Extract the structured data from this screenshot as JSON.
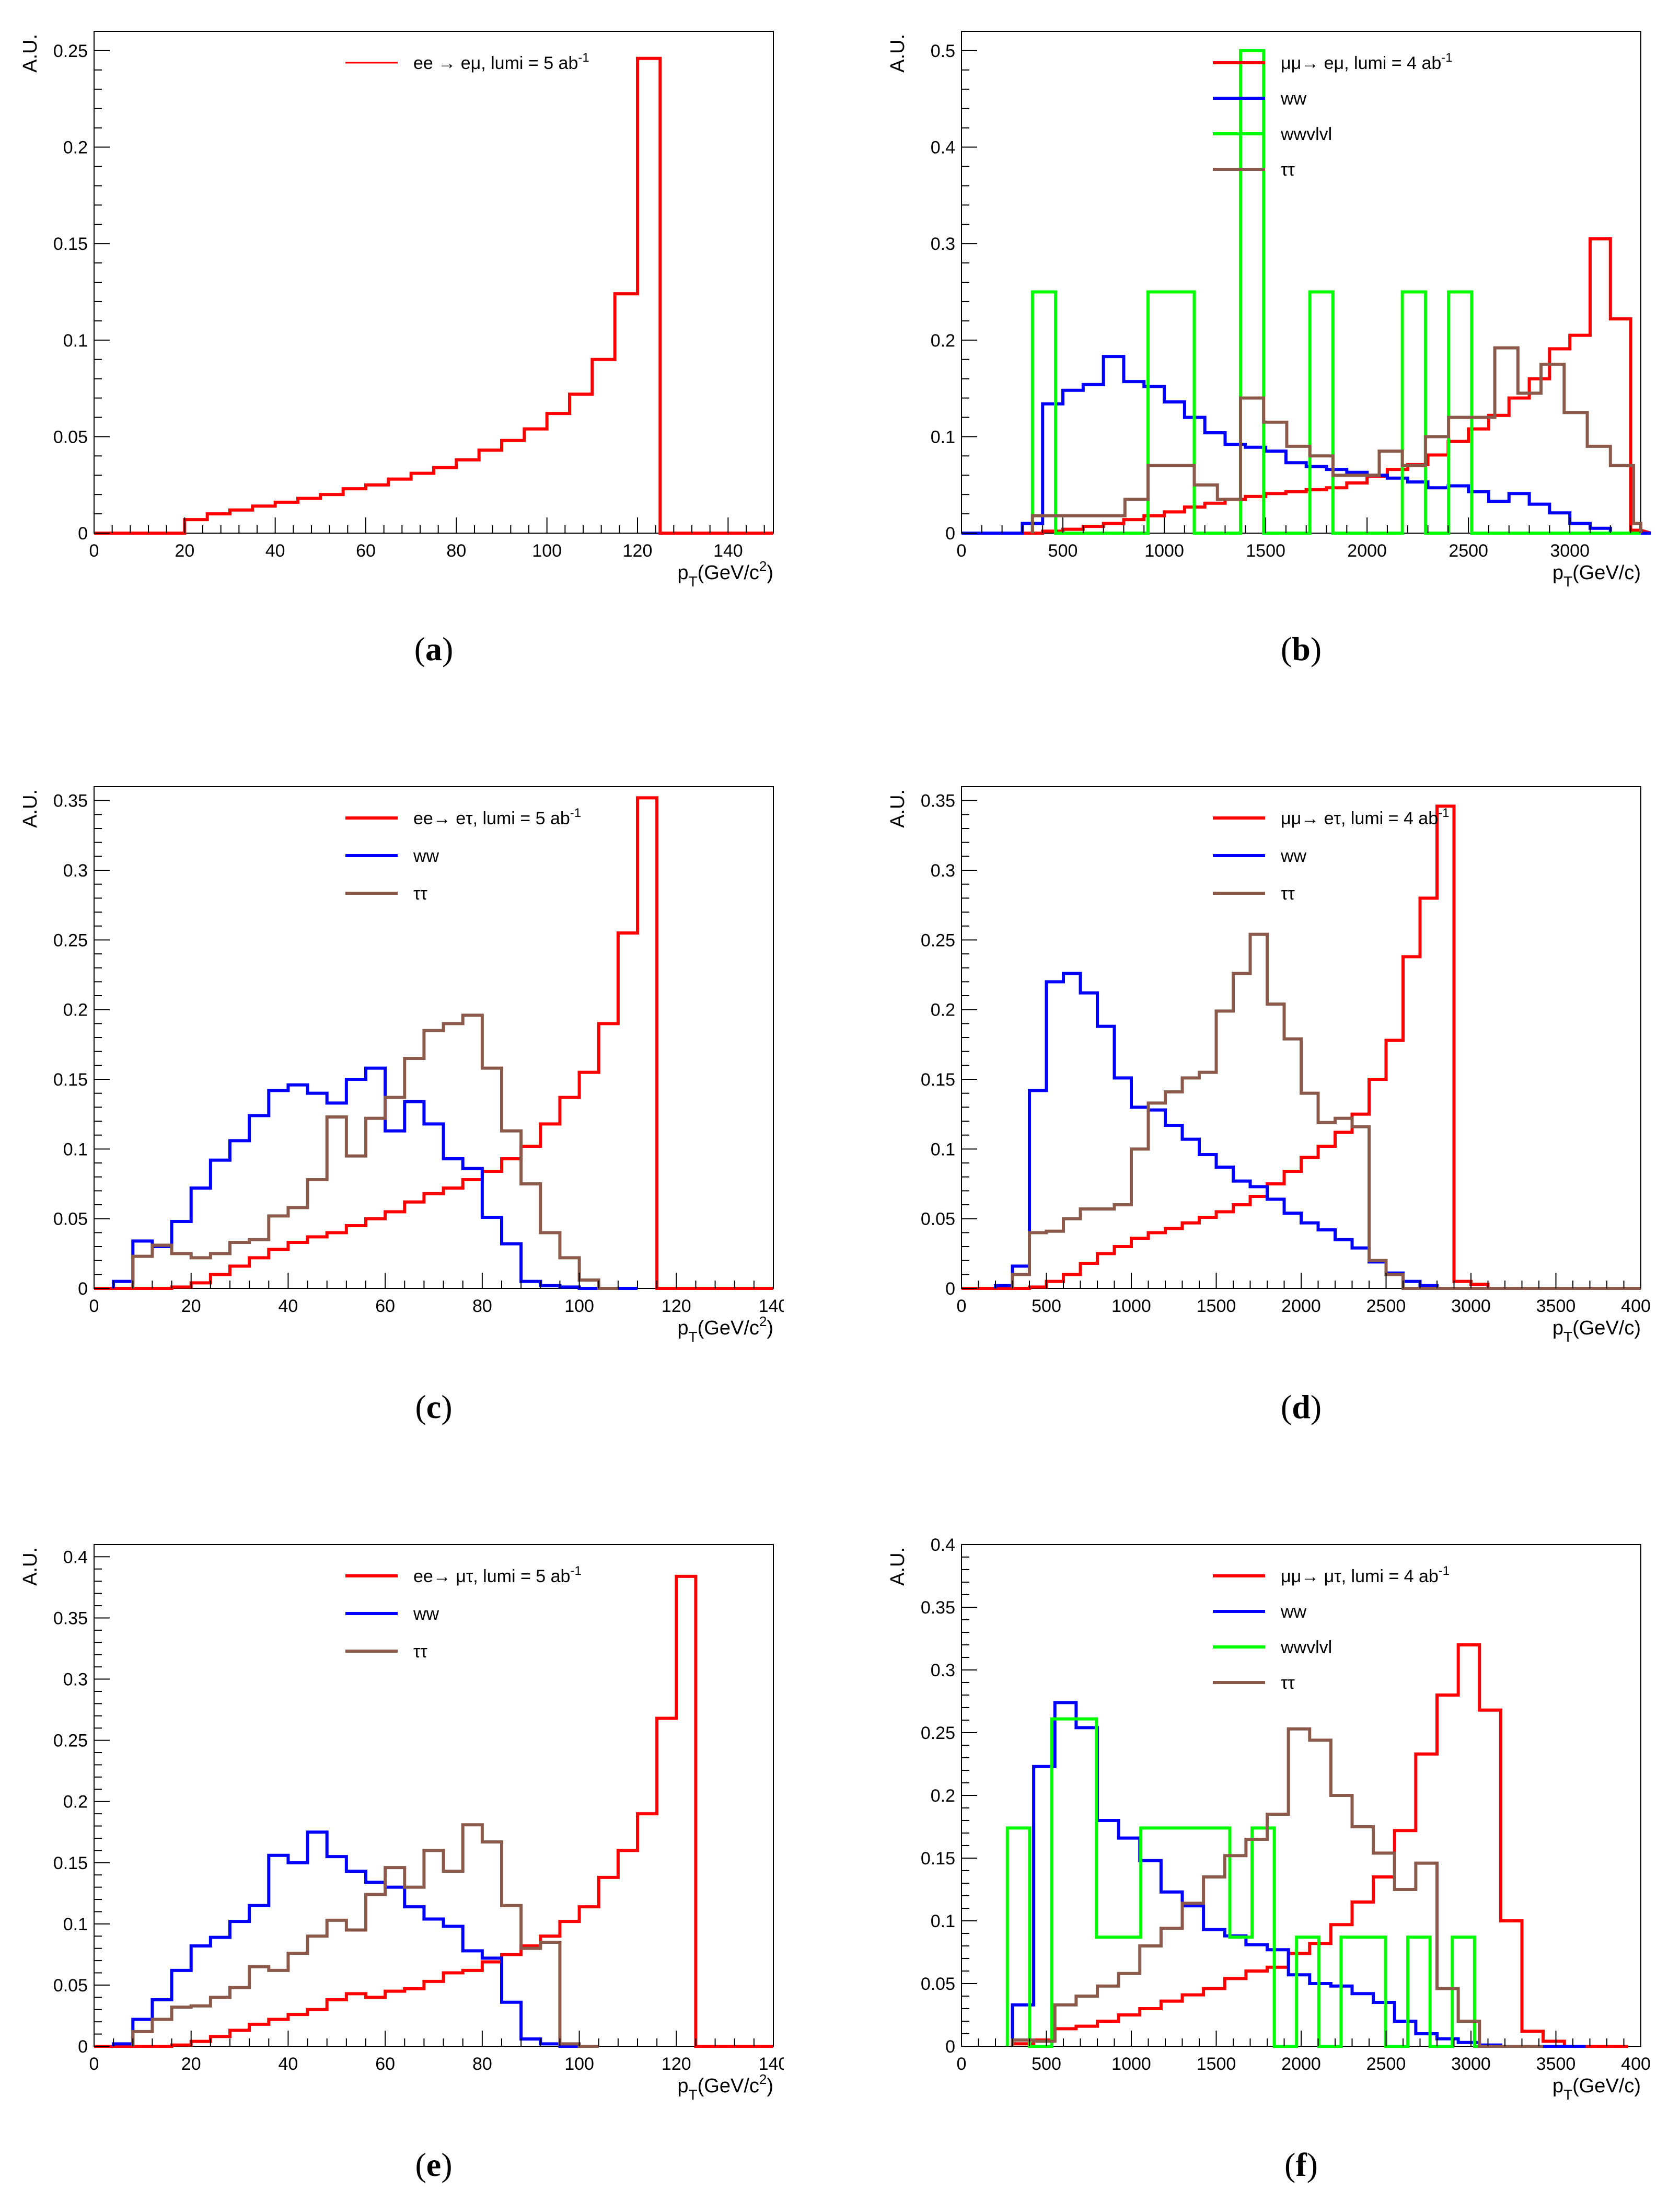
{
  "figure": {
    "panels": [
      {
        "id": "a",
        "caption": "a"
      },
      {
        "id": "b",
        "caption": "b"
      },
      {
        "id": "c",
        "caption": "c"
      },
      {
        "id": "d",
        "caption": "d"
      },
      {
        "id": "e",
        "caption": "e"
      },
      {
        "id": "f",
        "caption": "f"
      }
    ]
  },
  "colors": {
    "red": "#ff0000",
    "blue": "#0000ff",
    "green": "#00ff00",
    "brown": "#8b5a4a",
    "axis": "#000000"
  },
  "chart_data": [
    {
      "panel": "a",
      "type": "histogram",
      "ylabel": "A.U.",
      "xlabel_main": "p",
      "xlabel_sub": "T",
      "xlabel_unit": "(GeV/c",
      "xlabel_sup": "2",
      "xlabel_close": ")",
      "xlim": [
        0,
        150
      ],
      "ylim": [
        0,
        0.26
      ],
      "xticks": [
        0,
        20,
        40,
        60,
        80,
        100,
        120,
        140
      ],
      "yticks": [
        0,
        0.05,
        0.1,
        0.15,
        0.2,
        0.25
      ],
      "xtick_labels": [
        "0",
        "20",
        "40",
        "60",
        "80",
        "100",
        "120",
        "140"
      ],
      "ytick_labels": [
        "0",
        "0.05",
        "0.1",
        "0.15",
        "0.2",
        "0.25"
      ],
      "legend_position": "top-center",
      "series": [
        {
          "name": "ee → eμ, lumi = 5 ab",
          "sup": "-1",
          "color": "red",
          "start": 0,
          "width": 5,
          "values": [
            0,
            0,
            0,
            0,
            0.007,
            0.01,
            0.012,
            0.014,
            0.016,
            0.018,
            0.02,
            0.023,
            0.025,
            0.028,
            0.031,
            0.034,
            0.038,
            0.043,
            0.048,
            0.054,
            0.062,
            0.072,
            0.09,
            0.124,
            0.246,
            0,
            0,
            0,
            0,
            0
          ]
        }
      ]
    },
    {
      "panel": "b",
      "type": "histogram",
      "ylabel": "A.U.",
      "xlabel_main": "p",
      "xlabel_sub": "T",
      "xlabel_unit": "(GeV/c)",
      "xlabel_sup": "",
      "xlabel_close": "",
      "xlim": [
        0,
        3350
      ],
      "ylim": [
        0,
        0.52
      ],
      "xticks": [
        0,
        500,
        1000,
        1500,
        2000,
        2500,
        3000
      ],
      "yticks": [
        0,
        0.1,
        0.2,
        0.3,
        0.4,
        0.5
      ],
      "xtick_labels": [
        "0",
        "500",
        "1000",
        "1500",
        "2000",
        "2500",
        "3000"
      ],
      "ytick_labels": [
        "0",
        "0.1",
        "0.2",
        "0.3",
        "0.4",
        "0.5"
      ],
      "legend_position": "top-center",
      "series": [
        {
          "name": "μμ→ eμ, lumi = 4 ab",
          "sup": "-1",
          "color": "red",
          "start": 0,
          "width": 100,
          "values": [
            0,
            0,
            0,
            0,
            0.002,
            0.004,
            0.007,
            0.01,
            0.014,
            0.018,
            0.022,
            0.027,
            0.031,
            0.035,
            0.038,
            0.041,
            0.043,
            0.045,
            0.047,
            0.052,
            0.059,
            0.066,
            0.071,
            0.081,
            0.095,
            0.108,
            0.122,
            0.14,
            0.16,
            0.191,
            0.205,
            0.305,
            0.222,
            0.003,
            0
          ]
        },
        {
          "name": "ww",
          "sup": "",
          "color": "blue",
          "start": 0,
          "width": 100,
          "values": [
            0,
            0,
            0,
            0.01,
            0.134,
            0.148,
            0.154,
            0.183,
            0.157,
            0.152,
            0.136,
            0.12,
            0.104,
            0.092,
            0.089,
            0.085,
            0.073,
            0.069,
            0.066,
            0.063,
            0.06,
            0.057,
            0.053,
            0.047,
            0.049,
            0.043,
            0.033,
            0.041,
            0.03,
            0.021,
            0.01,
            0.005,
            0,
            0,
            0
          ]
        },
        {
          "name": "wwvlvl",
          "sup": "",
          "color": "green",
          "start": 350,
          "width": 114,
          "values": [
            0.25,
            0,
            0,
            0,
            0,
            0.25,
            0.25,
            0,
            0,
            0.5,
            0,
            0,
            0.25,
            0,
            0,
            0,
            0.25,
            0,
            0.25,
            0,
            0,
            0,
            0,
            0,
            0,
            0,
            0
          ]
        },
        {
          "name": "ττ",
          "sup": "",
          "color": "brown",
          "start": 350,
          "width": 114,
          "values": [
            0.018,
            0.018,
            0.018,
            0.018,
            0.035,
            0.07,
            0.07,
            0.05,
            0.035,
            0.14,
            0.115,
            0.09,
            0.08,
            0.06,
            0.06,
            0.085,
            0.07,
            0.1,
            0.12,
            0.12,
            0.192,
            0.145,
            0.175,
            0.125,
            0.09,
            0.07,
            0.01
          ]
        }
      ]
    },
    {
      "panel": "c",
      "type": "histogram",
      "ylabel": "A.U.",
      "xlabel_main": "p",
      "xlabel_sub": "T",
      "xlabel_unit": "(GeV/c",
      "xlabel_sup": "2",
      "xlabel_close": ")",
      "xlim": [
        0,
        140
      ],
      "ylim": [
        0,
        0.36
      ],
      "xticks": [
        0,
        20,
        40,
        60,
        80,
        100,
        120,
        140
      ],
      "yticks": [
        0,
        0.05,
        0.1,
        0.15,
        0.2,
        0.25,
        0.3,
        0.35
      ],
      "xtick_labels": [
        "0",
        "20",
        "40",
        "60",
        "80",
        "100",
        "120",
        "140"
      ],
      "ytick_labels": [
        "0",
        "0.05",
        "0.1",
        "0.15",
        "0.2",
        "0.25",
        "0.3",
        "0.35"
      ],
      "legend_position": "top-center",
      "series": [
        {
          "name": "ee→ eτ, lumi = 5 ab",
          "sup": "-1",
          "color": "red",
          "start": 0,
          "width": 4,
          "values": [
            0,
            0,
            0,
            0,
            0.001,
            0.004,
            0.01,
            0.016,
            0.022,
            0.028,
            0.033,
            0.037,
            0.04,
            0.045,
            0.05,
            0.055,
            0.062,
            0.068,
            0.072,
            0.078,
            0.084,
            0.093,
            0.102,
            0.118,
            0.137,
            0.155,
            0.19,
            0.255,
            0.352,
            0,
            0,
            0,
            0,
            0,
            0
          ]
        },
        {
          "name": "ww",
          "sup": "",
          "color": "blue",
          "start": 4,
          "width": 4,
          "values": [
            0.005,
            0.034,
            0.03,
            0.048,
            0.072,
            0.092,
            0.106,
            0.124,
            0.142,
            0.146,
            0.14,
            0.133,
            0.15,
            0.158,
            0.113,
            0.134,
            0.118,
            0.093,
            0.086,
            0.051,
            0.032,
            0.005,
            0.002,
            0.001,
            0,
            0,
            0
          ]
        },
        {
          "name": "ττ",
          "sup": "",
          "color": "brown",
          "start": 8,
          "width": 4,
          "values": [
            0.023,
            0.031,
            0.025,
            0.022,
            0.025,
            0.033,
            0.035,
            0.052,
            0.058,
            0.078,
            0.123,
            0.095,
            0.122,
            0.137,
            0.165,
            0.185,
            0.19,
            0.196,
            0.158,
            0.113,
            0.075,
            0.04,
            0.022,
            0.006,
            0
          ]
        }
      ]
    },
    {
      "panel": "d",
      "type": "histogram",
      "ylabel": "A.U.",
      "xlabel_main": "p",
      "xlabel_sub": "T",
      "xlabel_unit": "(GeV/c)",
      "xlabel_sup": "",
      "xlabel_close": "",
      "xlim": [
        0,
        4000
      ],
      "ylim": [
        0,
        0.36
      ],
      "xticks": [
        0,
        500,
        1000,
        1500,
        2000,
        2500,
        3000,
        3500,
        4000
      ],
      "yticks": [
        0,
        0.05,
        0.1,
        0.15,
        0.2,
        0.25,
        0.3,
        0.35
      ],
      "xtick_labels": [
        "0",
        "500",
        "1000",
        "1500",
        "2000",
        "2500",
        "3000",
        "3500",
        "4000"
      ],
      "ytick_labels": [
        "0",
        "0.05",
        "0.1",
        "0.15",
        "0.2",
        "0.25",
        "0.3",
        "0.35"
      ],
      "legend_position": "top-center",
      "series": [
        {
          "name": "μμ→ eτ, lumi = 4 ab",
          "sup": "-1",
          "color": "red",
          "start": 0,
          "width": 100,
          "values": [
            0,
            0,
            0,
            0,
            0.001,
            0.005,
            0.01,
            0.018,
            0.025,
            0.03,
            0.036,
            0.04,
            0.043,
            0.047,
            0.051,
            0.055,
            0.06,
            0.066,
            0.075,
            0.084,
            0.094,
            0.102,
            0.112,
            0.125,
            0.15,
            0.178,
            0.238,
            0.28,
            0.346,
            0.005,
            0.003,
            0,
            0,
            0,
            0,
            0,
            0,
            0,
            0,
            0
          ]
        },
        {
          "name": "ww",
          "sup": "",
          "color": "blue",
          "start": 200,
          "width": 100,
          "values": [
            0.002,
            0.016,
            0.142,
            0.22,
            0.226,
            0.212,
            0.188,
            0.151,
            0.13,
            0.128,
            0.117,
            0.107,
            0.096,
            0.087,
            0.077,
            0.073,
            0.064,
            0.054,
            0.047,
            0.042,
            0.035,
            0.029,
            0.019,
            0.011,
            0.005,
            0.002,
            0,
            0,
            0,
            0,
            0,
            0,
            0,
            0,
            0,
            0,
            0,
            0
          ]
        },
        {
          "name": "ττ",
          "sup": "",
          "color": "brown",
          "start": 300,
          "width": 100,
          "values": [
            0.01,
            0.04,
            0.041,
            0.05,
            0.057,
            0.057,
            0.06,
            0.1,
            0.133,
            0.141,
            0.151,
            0.155,
            0.199,
            0.226,
            0.254,
            0.204,
            0.179,
            0.14,
            0.119,
            0.122,
            0.116,
            0.02,
            0.01,
            0.0,
            0,
            0,
            0,
            0,
            0,
            0,
            0,
            0,
            0,
            0,
            0,
            0,
            0
          ]
        }
      ]
    },
    {
      "panel": "e",
      "type": "histogram",
      "ylabel": "A.U.",
      "xlabel_main": "p",
      "xlabel_sub": "T",
      "xlabel_unit": "(GeV/c",
      "xlabel_sup": "2",
      "xlabel_close": ")",
      "xlim": [
        0,
        140
      ],
      "ylim": [
        0,
        0.41
      ],
      "xticks": [
        0,
        20,
        40,
        60,
        80,
        100,
        120,
        140
      ],
      "yticks": [
        0,
        0.05,
        0.1,
        0.15,
        0.2,
        0.25,
        0.3,
        0.35,
        0.4
      ],
      "xtick_labels": [
        "0",
        "20",
        "40",
        "60",
        "80",
        "100",
        "120",
        "140"
      ],
      "ytick_labels": [
        "0",
        "0.05",
        "0.1",
        "0.15",
        "0.2",
        "0.25",
        "0.3",
        "0.35",
        "0.4"
      ],
      "legend_position": "top-center",
      "series": [
        {
          "name": "ee→ μτ, lumi = 5 ab",
          "sup": "-1",
          "color": "red",
          "start": 0,
          "width": 4,
          "values": [
            0,
            0,
            0,
            0,
            0.001,
            0.004,
            0.008,
            0.013,
            0.018,
            0.022,
            0.026,
            0.03,
            0.038,
            0.043,
            0.04,
            0.045,
            0.047,
            0.053,
            0.06,
            0.062,
            0.069,
            0.075,
            0.082,
            0.09,
            0.102,
            0.114,
            0.138,
            0.16,
            0.19,
            0.268,
            0.384,
            0,
            0,
            0,
            0
          ]
        },
        {
          "name": "ww",
          "sup": "",
          "color": "blue",
          "start": 4,
          "width": 4,
          "values": [
            0.002,
            0.022,
            0.038,
            0.062,
            0.082,
            0.089,
            0.102,
            0.115,
            0.156,
            0.15,
            0.175,
            0.155,
            0.143,
            0.134,
            0.13,
            0.114,
            0.104,
            0.098,
            0.078,
            0.072,
            0.036,
            0.006,
            0.002,
            0,
            0
          ]
        },
        {
          "name": "ττ",
          "sup": "",
          "color": "brown",
          "start": 8,
          "width": 4,
          "values": [
            0.012,
            0.022,
            0.032,
            0.033,
            0.04,
            0.048,
            0.065,
            0.062,
            0.076,
            0.09,
            0.103,
            0.095,
            0.124,
            0.146,
            0.13,
            0.16,
            0.143,
            0.181,
            0.167,
            0.115,
            0.08,
            0.085,
            0.002,
            0
          ]
        }
      ]
    },
    {
      "panel": "f",
      "type": "histogram",
      "ylabel": "A.U.",
      "xlabel_main": "p",
      "xlabel_sub": "T",
      "xlabel_unit": "(GeV/c)",
      "xlabel_sup": "",
      "xlabel_close": "",
      "xlim": [
        0,
        4000
      ],
      "ylim": [
        0,
        0.4
      ],
      "xticks": [
        0,
        500,
        1000,
        1500,
        2000,
        2500,
        3000,
        3500,
        4000
      ],
      "yticks": [
        0,
        0.05,
        0.1,
        0.15,
        0.2,
        0.25,
        0.3,
        0.35,
        0.4
      ],
      "xtick_labels": [
        "0",
        "500",
        "1000",
        "1500",
        "2000",
        "2500",
        "3000",
        "3500",
        "4000"
      ],
      "ytick_labels": [
        "0",
        "0.05",
        "0.1",
        "0.15",
        "0.2",
        "0.25",
        "0.3",
        "0.35",
        "0.4"
      ],
      "legend_position": "top-center",
      "series": [
        {
          "name": "μμ→ μτ, lumi = 4 ab",
          "sup": "-1",
          "color": "red",
          "start": 300,
          "width": 125,
          "values": [
            0.002,
            0.005,
            0.014,
            0.016,
            0.02,
            0.025,
            0.03,
            0.036,
            0.041,
            0.046,
            0.054,
            0.06,
            0.063,
            0.074,
            0.082,
            0.097,
            0.115,
            0.135,
            0.172,
            0.233,
            0.28,
            0.32,
            0.268,
            0.1,
            0.012,
            0.004,
            0,
            0,
            0
          ]
        },
        {
          "name": "ww",
          "sup": "",
          "color": "blue",
          "start": 300,
          "width": 125,
          "values": [
            0.033,
            0.223,
            0.274,
            0.254,
            0.18,
            0.166,
            0.148,
            0.123,
            0.112,
            0.093,
            0.088,
            0.081,
            0.077,
            0.057,
            0.05,
            0.048,
            0.042,
            0.035,
            0.02,
            0.01,
            0.006,
            0.003,
            0.001,
            0,
            0,
            0,
            0
          ]
        },
        {
          "name": "wwvlvl",
          "sup": "",
          "color": "green",
          "start": 270,
          "width": 131,
          "values": [
            0.174,
            0,
            0.261,
            0.261,
            0.087,
            0.087,
            0.174,
            0.174,
            0.174,
            0.174,
            0.087,
            0.174,
            0,
            0.087,
            0,
            0.087,
            0.087,
            0,
            0.087,
            0,
            0.087,
            0,
            0
          ]
        },
        {
          "name": "ττ",
          "sup": "",
          "color": "brown",
          "start": 300,
          "width": 125,
          "values": [
            0.005,
            0.004,
            0.033,
            0.04,
            0.048,
            0.058,
            0.08,
            0.094,
            0.114,
            0.135,
            0.152,
            0.165,
            0.185,
            0.253,
            0.244,
            0.2,
            0.175,
            0.154,
            0.125,
            0.146,
            0.046,
            0.02,
            0,
            0,
            0
          ]
        }
      ]
    }
  ]
}
